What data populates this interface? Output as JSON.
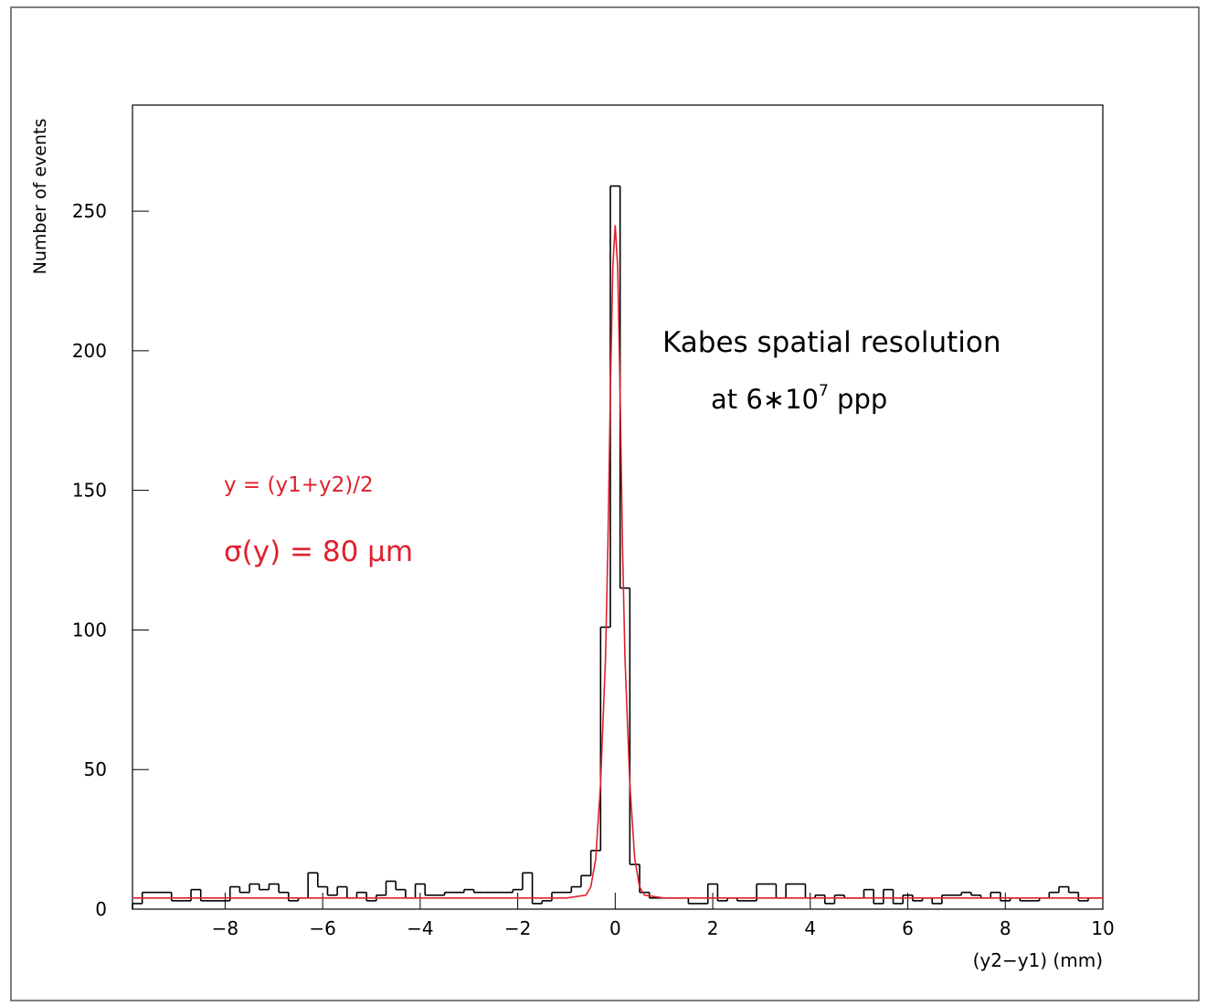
{
  "chart_data": {
    "type": "histogram",
    "annotations": {
      "title": "Kabes spatial resolution",
      "subtitle_main": "at 6∗10",
      "subtitle_sup": "7",
      "subtitle_tail": " ppp",
      "formula": "y = (y1+y2)/2",
      "sigma": "σ(y) =  80 μm"
    },
    "ylabel": "Number of events",
    "xlabel": "(y2−y1) (mm)",
    "color": "#000000",
    "annotation_color": "#e0202e",
    "xlim": [
      -9.9,
      10
    ],
    "ylim": [
      0,
      288
    ],
    "xticks": [
      {
        "value": -8,
        "label": "−8"
      },
      {
        "value": -6,
        "label": "−6"
      },
      {
        "value": -4,
        "label": "−4"
      },
      {
        "value": -2,
        "label": "−2"
      },
      0,
      2,
      4,
      6,
      8,
      10
    ],
    "yticks": [
      0,
      50,
      100,
      150,
      200,
      250
    ],
    "bins": [
      -9.9,
      -9.7,
      -9.5,
      -9.3,
      -9.1,
      -8.9,
      -8.7,
      -8.5,
      -8.3,
      -8.1,
      -7.9,
      -7.7,
      -7.5,
      -7.3,
      -7.1,
      -6.9,
      -6.7,
      -6.5,
      -6.3,
      -6.1,
      -5.9,
      -5.7,
      -5.5,
      -5.3,
      -5.1,
      -4.9,
      -4.7,
      -4.5,
      -4.3,
      -4.1,
      -3.9,
      -3.7,
      -3.5,
      -3.3,
      -3.1,
      -2.9,
      -2.7,
      -2.5,
      -2.3,
      -2.1,
      -1.9,
      -1.7,
      -1.5,
      -1.3,
      -1.1,
      -0.9,
      -0.7,
      -0.5,
      -0.3,
      -0.1,
      0.1,
      0.3,
      0.5,
      0.7,
      0.9,
      1.1,
      1.3,
      1.5,
      1.7,
      1.9,
      2.1,
      2.3,
      2.5,
      2.7,
      2.9,
      3.1,
      3.3,
      3.5,
      3.7,
      3.9,
      4.1,
      4.3,
      4.5,
      4.7,
      4.9,
      5.1,
      5.3,
      5.5,
      5.7,
      5.9,
      6.1,
      6.3,
      6.5,
      6.7,
      6.9,
      7.1,
      7.3,
      7.5,
      7.7,
      7.9,
      8.1,
      8.3,
      8.5,
      8.7,
      8.9,
      9.1,
      9.3,
      9.5,
      9.7,
      9.9
    ],
    "values": [
      2,
      6,
      6,
      6,
      3,
      3,
      7,
      3,
      3,
      3,
      8,
      6,
      9,
      7,
      9,
      6,
      3,
      4,
      13,
      8,
      5,
      8,
      4,
      6,
      3,
      5,
      10,
      7,
      4,
      9,
      5,
      5,
      6,
      6,
      7,
      6,
      6,
      6,
      6,
      7,
      13,
      2,
      3,
      6,
      6,
      8,
      12,
      21,
      101,
      259,
      115,
      16,
      6,
      4,
      4,
      4,
      4,
      2,
      2,
      9,
      3,
      4,
      3,
      3,
      9,
      9,
      4,
      9,
      9,
      4,
      5,
      2,
      5,
      4,
      4,
      7,
      2,
      7,
      2,
      5,
      3,
      4,
      2,
      5,
      5,
      6,
      5,
      4,
      6,
      3,
      4,
      3,
      3,
      4,
      6,
      8,
      6,
      3,
      4
    ],
    "fit": {
      "color": "#e0202e",
      "x": [
        -9.9,
        -2,
        -1,
        -0.6,
        -0.5,
        -0.4,
        -0.3,
        -0.2,
        -0.15,
        -0.1,
        -0.05,
        0,
        0.05,
        0.1,
        0.15,
        0.2,
        0.3,
        0.4,
        0.5,
        0.6,
        1,
        2,
        10
      ],
      "y": [
        4,
        4,
        4,
        5,
        8,
        18,
        45,
        90,
        130,
        185,
        230,
        245,
        230,
        185,
        130,
        90,
        45,
        18,
        8,
        5,
        4,
        4,
        4
      ]
    }
  }
}
